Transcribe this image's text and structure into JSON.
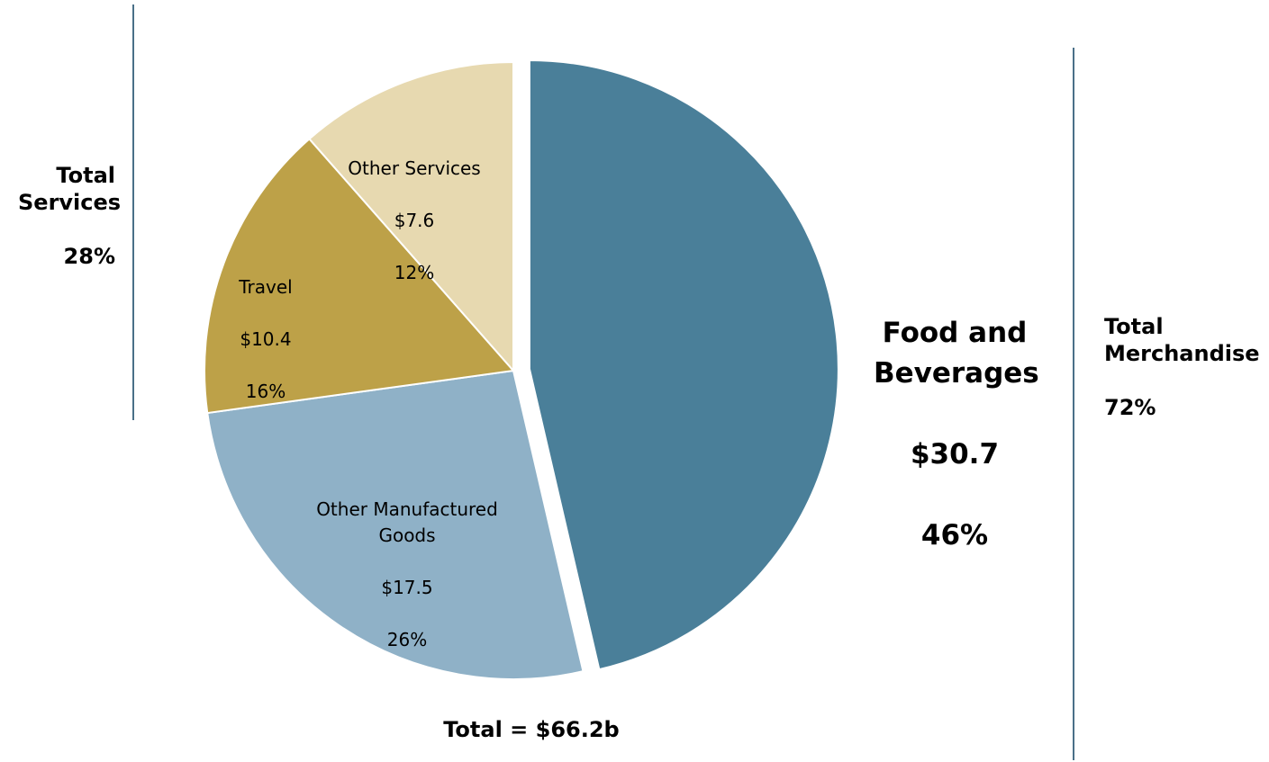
{
  "chart_data": {
    "type": "pie",
    "total_label": "Total = $66.2b",
    "slices": [
      {
        "name": "Food and Beverages",
        "value": 30.7,
        "value_label": "$30.7",
        "percent_label": "46%",
        "color": "#4a7f99",
        "exploded": true
      },
      {
        "name": "Other Manufactured Goods",
        "value": 17.5,
        "value_label": "$17.5",
        "percent_label": "26%",
        "color": "#8fb1c7"
      },
      {
        "name": "Travel",
        "value": 10.4,
        "value_label": "$10.4",
        "percent_label": "16%",
        "color": "#bda148"
      },
      {
        "name": "Other Services",
        "value": 7.6,
        "value_label": "$7.6",
        "percent_label": "12%",
        "color": "#e7d9b0"
      }
    ],
    "groups": [
      {
        "name": "Total Services",
        "percent_label": "28%"
      },
      {
        "name": "Total Merchandise",
        "percent_label": "72%"
      }
    ]
  }
}
